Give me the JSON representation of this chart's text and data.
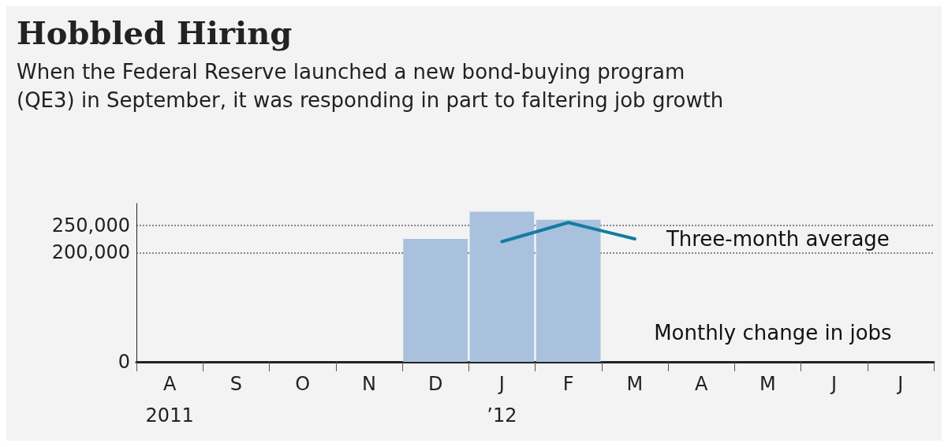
{
  "chart_data": {
    "type": "bar",
    "title": "Hobbled Hiring",
    "subtitle": "When the Federal Reserve launched a new bond-buying program\n(QE3) in September, it was responding in part to faltering job growth",
    "categories": [
      "A\n2011",
      "S",
      "O",
      "N",
      "D",
      "J\n’12",
      "F",
      "M",
      "A",
      "M",
      "J",
      "J"
    ],
    "series": [
      {
        "name": "Monthly change in jobs",
        "color": "#a9c1dd",
        "values": [
          null,
          null,
          null,
          null,
          225000,
          275000,
          260000,
          null,
          null,
          null,
          null,
          null
        ]
      },
      {
        "name": "Three-month average",
        "type": "line",
        "color": "#137ca3",
        "values": [
          null,
          null,
          null,
          null,
          null,
          220000,
          255000,
          225000,
          null,
          null,
          null,
          null
        ]
      }
    ],
    "ylim": [
      0,
      290000
    ],
    "yticks": [
      0,
      {
        "value": 200000,
        "label": "200,000"
      },
      {
        "value": 250000,
        "label": "250,000"
      }
    ],
    "grid": "y",
    "line_style": "solid",
    "marker": "none",
    "legend": false
  }
}
